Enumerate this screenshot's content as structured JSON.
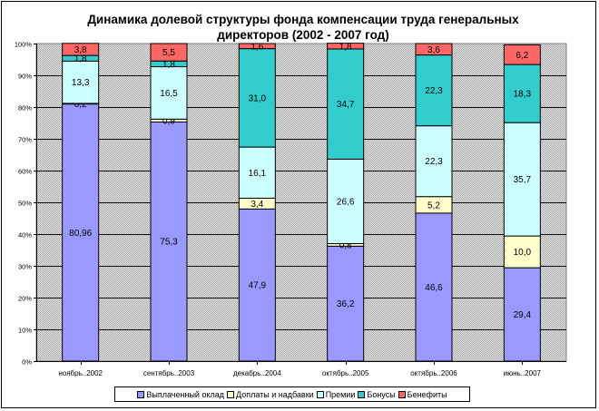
{
  "chart_data": {
    "type": "bar",
    "stacked": true,
    "percent": true,
    "title": "Динамика долевой структуры фонда компенсации труда генеральных директоров (2002 - 2007 год)",
    "title_lines": [
      "Динамика долевой структуры фонда компенсации труда генеральных",
      "директоров (2002 - 2007 год)"
    ],
    "categories": [
      "ноябрь..2002",
      "сентябрь..2003",
      "декабрь..2004",
      "октябрь..2005",
      "октябрь..2006",
      "июнь..2007"
    ],
    "y_ticks": [
      "0%",
      "10%",
      "20%",
      "30%",
      "40%",
      "50%",
      "60%",
      "70%",
      "80%",
      "90%",
      "100%"
    ],
    "ylim": [
      0,
      100
    ],
    "grid": true,
    "legend_position": "bottom",
    "series": [
      {
        "name": "Выплаченный оклад",
        "color": "#9999ff",
        "values": [
          80.96,
          75.3,
          47.9,
          36.2,
          46.6,
          29.4
        ],
        "labels": [
          "80,96",
          "75,3",
          "47,9",
          "36,2",
          "46,6",
          "29,4"
        ]
      },
      {
        "name": "Доплаты и надбавки",
        "color": "#ffffcc",
        "values": [
          0.2,
          0.9,
          3.4,
          0.8,
          5.2,
          10.0
        ],
        "labels": [
          "0,2",
          "0,9",
          "3,4",
          "0,8",
          "5,2",
          "10,0"
        ]
      },
      {
        "name": "Премии",
        "color": "#ccffff",
        "values": [
          13.3,
          16.5,
          16.1,
          26.6,
          22.3,
          35.7
        ],
        "labels": [
          "13,3",
          "16,5",
          "16,1",
          "26,6",
          "22,3",
          "35,7"
        ]
      },
      {
        "name": "Бонусы",
        "color": "#33cccc",
        "values": [
          1.8,
          1.8,
          31.0,
          34.7,
          22.3,
          18.3
        ],
        "labels": [
          "1,8",
          "1,8",
          "31,0",
          "34,7",
          "22,3",
          "18,3"
        ]
      },
      {
        "name": "Бенефиты",
        "color": "#ff6666",
        "values": [
          3.8,
          5.5,
          1.6,
          1.8,
          3.6,
          6.2
        ],
        "labels": [
          "3,8",
          "5,5",
          "1,6",
          "1,8",
          "3,6",
          "6,2"
        ]
      }
    ]
  }
}
